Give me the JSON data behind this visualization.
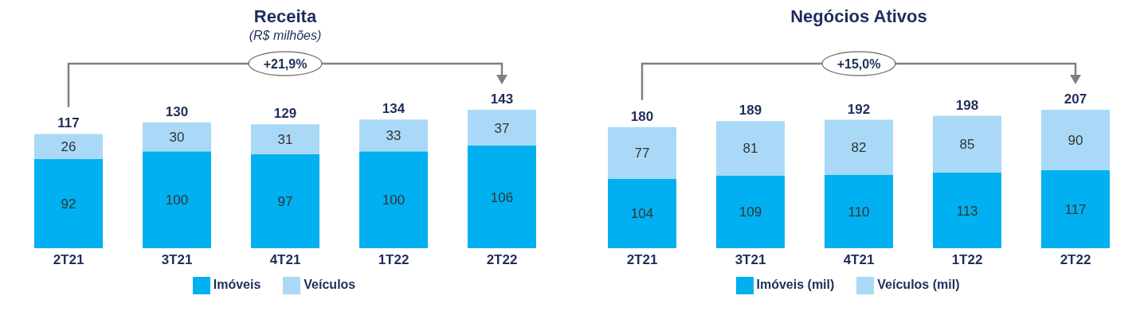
{
  "chart_data": [
    {
      "type": "bar",
      "title": "Receita",
      "subtitle": "(R$ milhões)",
      "categories": [
        "2T21",
        "3T21",
        "4T21",
        "1T22",
        "2T22"
      ],
      "stacked": true,
      "data_labels": true,
      "legend": "bottom",
      "grid": false,
      "series": [
        {
          "name": "Imóveis",
          "color": "#00b0f0",
          "values": [
            92,
            100,
            97,
            100,
            106
          ]
        },
        {
          "name": "Veículos",
          "color": "#a9d9f7",
          "values": [
            26,
            30,
            31,
            33,
            37
          ]
        }
      ],
      "totals": [
        "117",
        "130",
        "129",
        "134",
        "143"
      ],
      "annotations": [
        "+21,9%"
      ]
    },
    {
      "type": "bar",
      "title": "Negócios Ativos",
      "categories": [
        "2T21",
        "3T21",
        "4T21",
        "1T22",
        "2T22"
      ],
      "stacked": true,
      "data_labels": true,
      "legend": "bottom",
      "grid": false,
      "series": [
        {
          "name": "Imóveis (mil)",
          "color": "#00b0f0",
          "values": [
            104,
            109,
            110,
            113,
            117
          ]
        },
        {
          "name": "Veículos (mil)",
          "color": "#a9d9f7",
          "values": [
            77,
            81,
            82,
            85,
            90
          ]
        }
      ],
      "totals": [
        "180",
        "189",
        "192",
        "198",
        "207"
      ],
      "annotations": [
        "+15,0%"
      ]
    }
  ]
}
